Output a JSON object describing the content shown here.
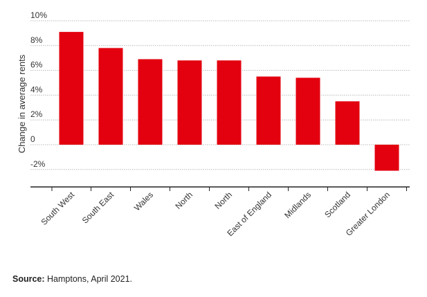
{
  "chart_data": {
    "type": "bar",
    "categories": [
      "South West",
      "South East",
      "Wales",
      "North",
      "North",
      "East of England",
      "Midlands",
      "Scotland",
      "Greater London"
    ],
    "values": [
      9.1,
      7.8,
      6.9,
      6.8,
      6.8,
      5.5,
      5.4,
      3.5,
      -2.1
    ],
    "ylabel": "Change in average rents",
    "ylim": [
      -2,
      10
    ],
    "yticks": [
      10,
      8,
      6,
      4,
      2,
      0,
      -2
    ],
    "ytick_labels": [
      "10%",
      "8%",
      "6%",
      "4%",
      "2%",
      "0",
      "-2%"
    ],
    "grid": true,
    "bar_color": "#e3000f"
  },
  "source": {
    "label": "Source:",
    "text": " Hamptons, April 2021."
  }
}
